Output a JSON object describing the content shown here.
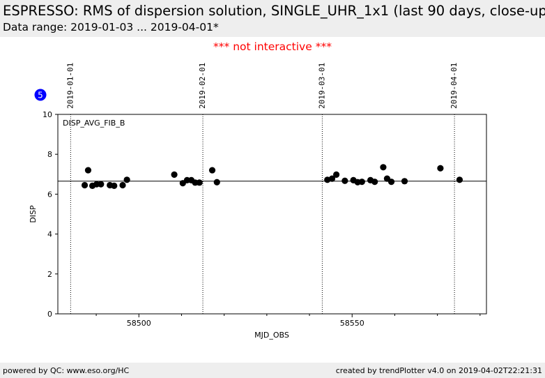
{
  "header": {
    "title": "ESPRESSO: RMS of dispersion solution, SINGLE_UHR_1x1 (last 90 days, close-up",
    "subtitle": "Data range: 2019-01-03 ... 2019-04-01*"
  },
  "notice": "*** not interactive ***",
  "badge": "5",
  "footer": {
    "left": "powered by QC: www.eso.org/HC",
    "right": "created by trendPlotter v4.0 on 2019-04-02T22:21:31"
  },
  "colors": {
    "points": "#000000",
    "badge": "#0000ff",
    "notice": "#ff0000",
    "band": "#eeeeee"
  },
  "chart_data": {
    "type": "scatter",
    "xlabel": "MJD_OBS",
    "ylabel": "DISP",
    "panel_label": "DISP_AVG_FIB_B",
    "xlim": [
      58481,
      58581.5
    ],
    "ylim": [
      0,
      10
    ],
    "x_ticks": [
      58500,
      58550
    ],
    "x_minor_ticks": [
      58490,
      58510,
      58520,
      58530,
      58540,
      58560,
      58570,
      58580
    ],
    "y_ticks": [
      0,
      2,
      4,
      6,
      8,
      10
    ],
    "reference_line": 6.65,
    "date_markers": [
      {
        "label": "2019-01-01",
        "x": 58484
      },
      {
        "label": "2019-02-01",
        "x": 58515
      },
      {
        "label": "2019-03-01",
        "x": 58543
      },
      {
        "label": "2019-04-01",
        "x": 58574
      }
    ],
    "points": [
      {
        "x": 58487.3,
        "y": 6.45
      },
      {
        "x": 58488.1,
        "y": 7.2
      },
      {
        "x": 58489.1,
        "y": 6.42
      },
      {
        "x": 58490.1,
        "y": 6.5
      },
      {
        "x": 58491.1,
        "y": 6.5
      },
      {
        "x": 58493.2,
        "y": 6.45
      },
      {
        "x": 58494.2,
        "y": 6.42
      },
      {
        "x": 58496.2,
        "y": 6.45
      },
      {
        "x": 58497.2,
        "y": 6.72
      },
      {
        "x": 58508.3,
        "y": 6.98
      },
      {
        "x": 58510.3,
        "y": 6.55
      },
      {
        "x": 58511.3,
        "y": 6.7
      },
      {
        "x": 58512.3,
        "y": 6.7
      },
      {
        "x": 58513.2,
        "y": 6.58
      },
      {
        "x": 58514.2,
        "y": 6.58
      },
      {
        "x": 58517.2,
        "y": 7.2
      },
      {
        "x": 58518.3,
        "y": 6.6
      },
      {
        "x": 58544.2,
        "y": 6.72
      },
      {
        "x": 58545.3,
        "y": 6.78
      },
      {
        "x": 58546.3,
        "y": 6.98
      },
      {
        "x": 58548.3,
        "y": 6.67
      },
      {
        "x": 58550.3,
        "y": 6.7
      },
      {
        "x": 58551.3,
        "y": 6.6
      },
      {
        "x": 58552.3,
        "y": 6.62
      },
      {
        "x": 58554.3,
        "y": 6.7
      },
      {
        "x": 58555.3,
        "y": 6.62
      },
      {
        "x": 58557.3,
        "y": 7.35
      },
      {
        "x": 58558.2,
        "y": 6.78
      },
      {
        "x": 58559.2,
        "y": 6.62
      },
      {
        "x": 58562.3,
        "y": 6.65
      },
      {
        "x": 58570.7,
        "y": 7.3
      },
      {
        "x": 58575.2,
        "y": 6.72
      }
    ]
  }
}
